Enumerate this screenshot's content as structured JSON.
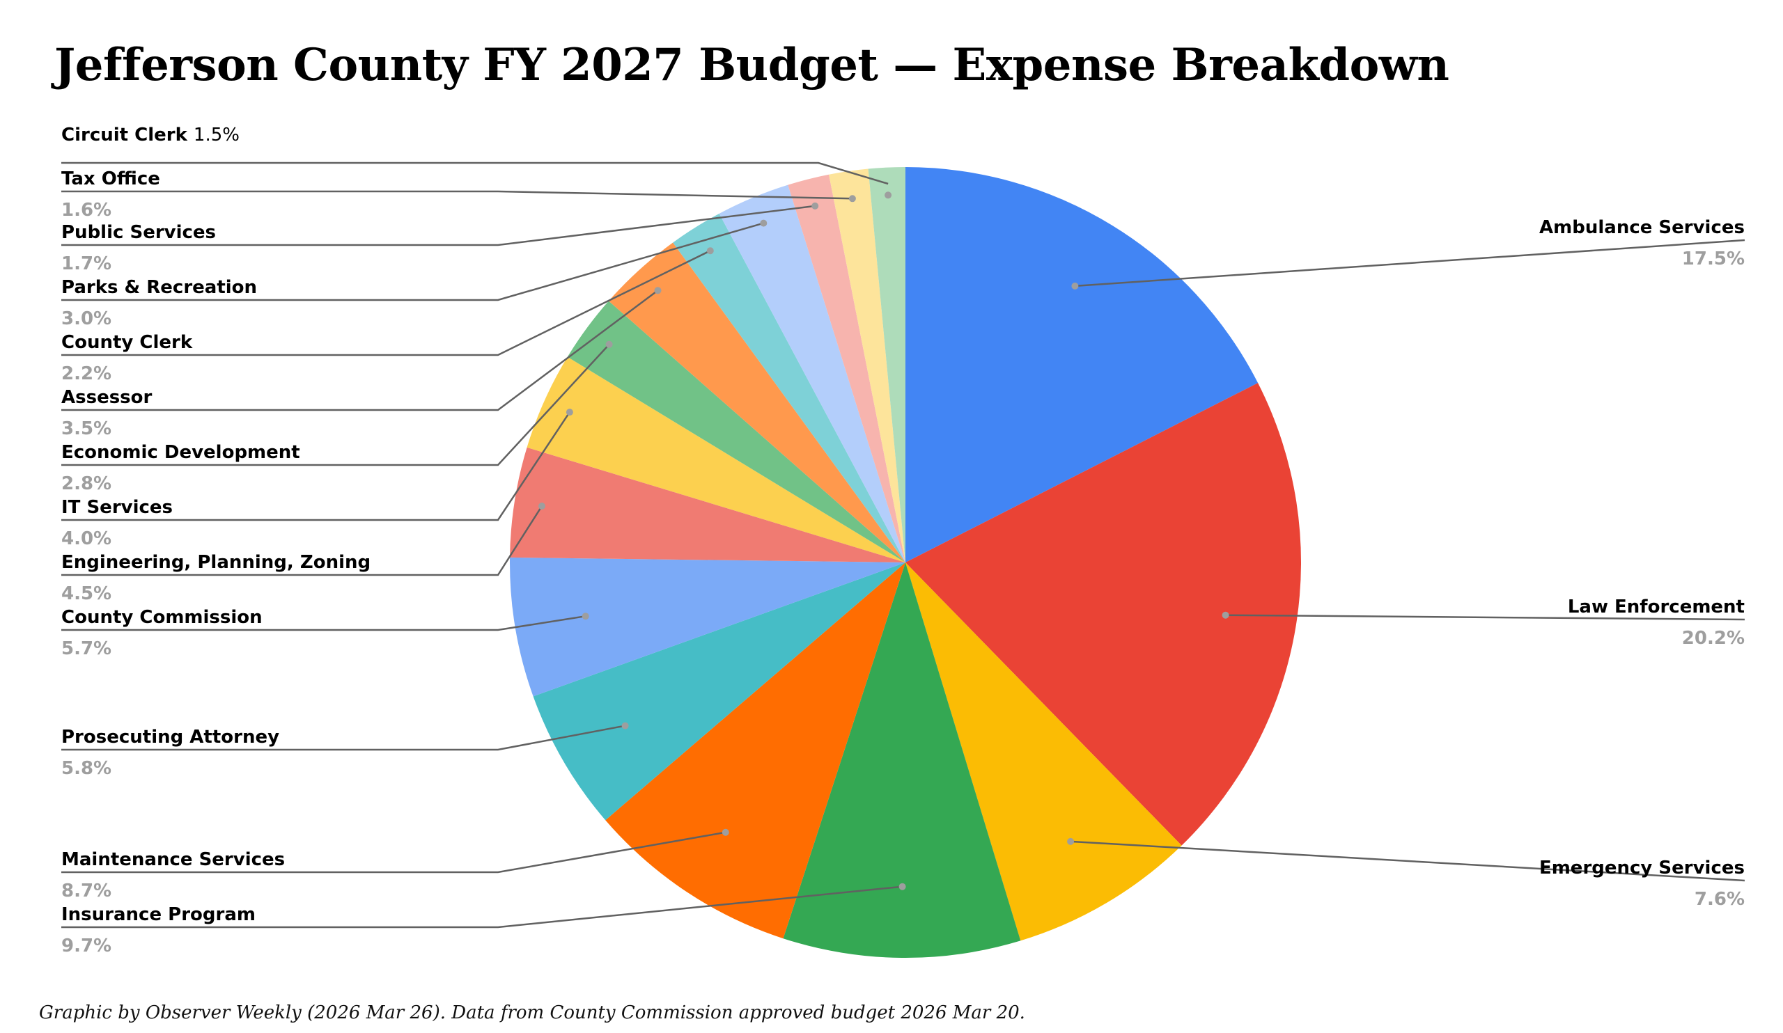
{
  "chart_data": {
    "type": "pie",
    "title": "Jefferson County FY 2027 Budget — Expense Breakdown",
    "slices": [
      {
        "label": "Ambulance Services",
        "pct_label": "17.5%",
        "value": 17.5,
        "color": "#4285F4"
      },
      {
        "label": "Law Enforcement",
        "pct_label": "20.2%",
        "value": 20.2,
        "color": "#EA4335"
      },
      {
        "label": "Emergency Services",
        "pct_label": "7.6%",
        "value": 7.6,
        "color": "#FBBC04"
      },
      {
        "label": "Insurance Program",
        "pct_label": "9.7%",
        "value": 9.7,
        "color": "#34A853"
      },
      {
        "label": "Maintenance Services",
        "pct_label": "8.7%",
        "value": 8.7,
        "color": "#FF6D01"
      },
      {
        "label": "Prosecuting Attorney",
        "pct_label": "5.8%",
        "value": 5.8,
        "color": "#46BDC6"
      },
      {
        "label": "County Commission",
        "pct_label": "5.7%",
        "value": 5.7,
        "color": "#7BAAF7"
      },
      {
        "label": "Engineering, Planning, Zoning",
        "pct_label": "4.5%",
        "value": 4.5,
        "color": "#F07B72"
      },
      {
        "label": "IT Services",
        "pct_label": "4.0%",
        "value": 4.0,
        "color": "#FCD04F"
      },
      {
        "label": "Economic Development",
        "pct_label": "2.8%",
        "value": 2.8,
        "color": "#71C287"
      },
      {
        "label": "Assessor",
        "pct_label": "3.5%",
        "value": 3.5,
        "color": "#FF994D"
      },
      {
        "label": "County Clerk",
        "pct_label": "2.2%",
        "value": 2.2,
        "color": "#7ED1D7"
      },
      {
        "label": "Parks & Recreation",
        "pct_label": "3.0%",
        "value": 3.0,
        "color": "#B3CEFB"
      },
      {
        "label": "Public Services",
        "pct_label": "1.7%",
        "value": 1.7,
        "color": "#F7B4AE"
      },
      {
        "label": "Tax Office",
        "pct_label": "1.6%",
        "value": 1.6,
        "color": "#FDE49B"
      },
      {
        "label": "Circuit Clerk",
        "pct_label": "1.5%",
        "value": 1.5,
        "color": "#AEDCBA"
      }
    ]
  },
  "footer": {
    "credit": "Graphic by Observer Weekly (2026 Mar 26). Data from County Commission approved budget 2026 Mar 20."
  }
}
